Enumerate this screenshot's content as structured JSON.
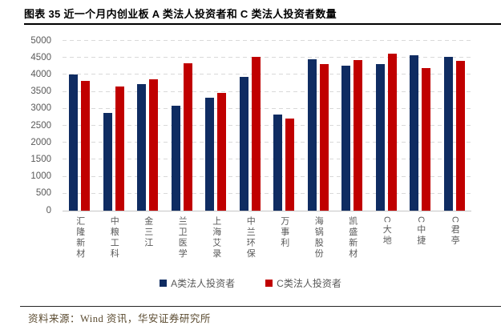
{
  "title": "图表 35 近一个月内创业板 A 类法人投资者和 C 类法人投资者数量",
  "source": "资料来源：Wind 资讯，华安证券研究所",
  "colors": {
    "series_a": "#0f2c62",
    "series_c": "#c00000",
    "grid": "#d9d9d9",
    "axis_text": "#595959",
    "source_text": "#5a4a2f",
    "rule": "#000000"
  },
  "chart_data": {
    "type": "bar",
    "categories": [
      "汇隆新材",
      "中粮工科",
      "金三江",
      "兰卫医学",
      "上海艾录",
      "中兰环保",
      "万事利",
      "海锅股份",
      "凯盛新材",
      "C大地",
      "C中捷",
      "C君亭"
    ],
    "series": [
      {
        "key": "a",
        "name": "A类法人投资者",
        "color": "#0f2c62",
        "values": [
          4020,
          2870,
          3730,
          3100,
          3330,
          3930,
          2840,
          4450,
          4260,
          4310,
          4570,
          4540
        ]
      },
      {
        "key": "c",
        "name": "C类法人投资者",
        "color": "#c00000",
        "values": [
          3830,
          3650,
          3880,
          4340,
          3470,
          4540,
          2720,
          4310,
          4430,
          4630,
          4200,
          4400
        ]
      }
    ],
    "title": "近一个月内创业板A类法人投资者和C类法人投资者数量",
    "xlabel": "",
    "ylabel": "",
    "ylim": [
      0,
      5000
    ],
    "ytick_step": 500,
    "grid": true,
    "legend_position": "bottom"
  }
}
